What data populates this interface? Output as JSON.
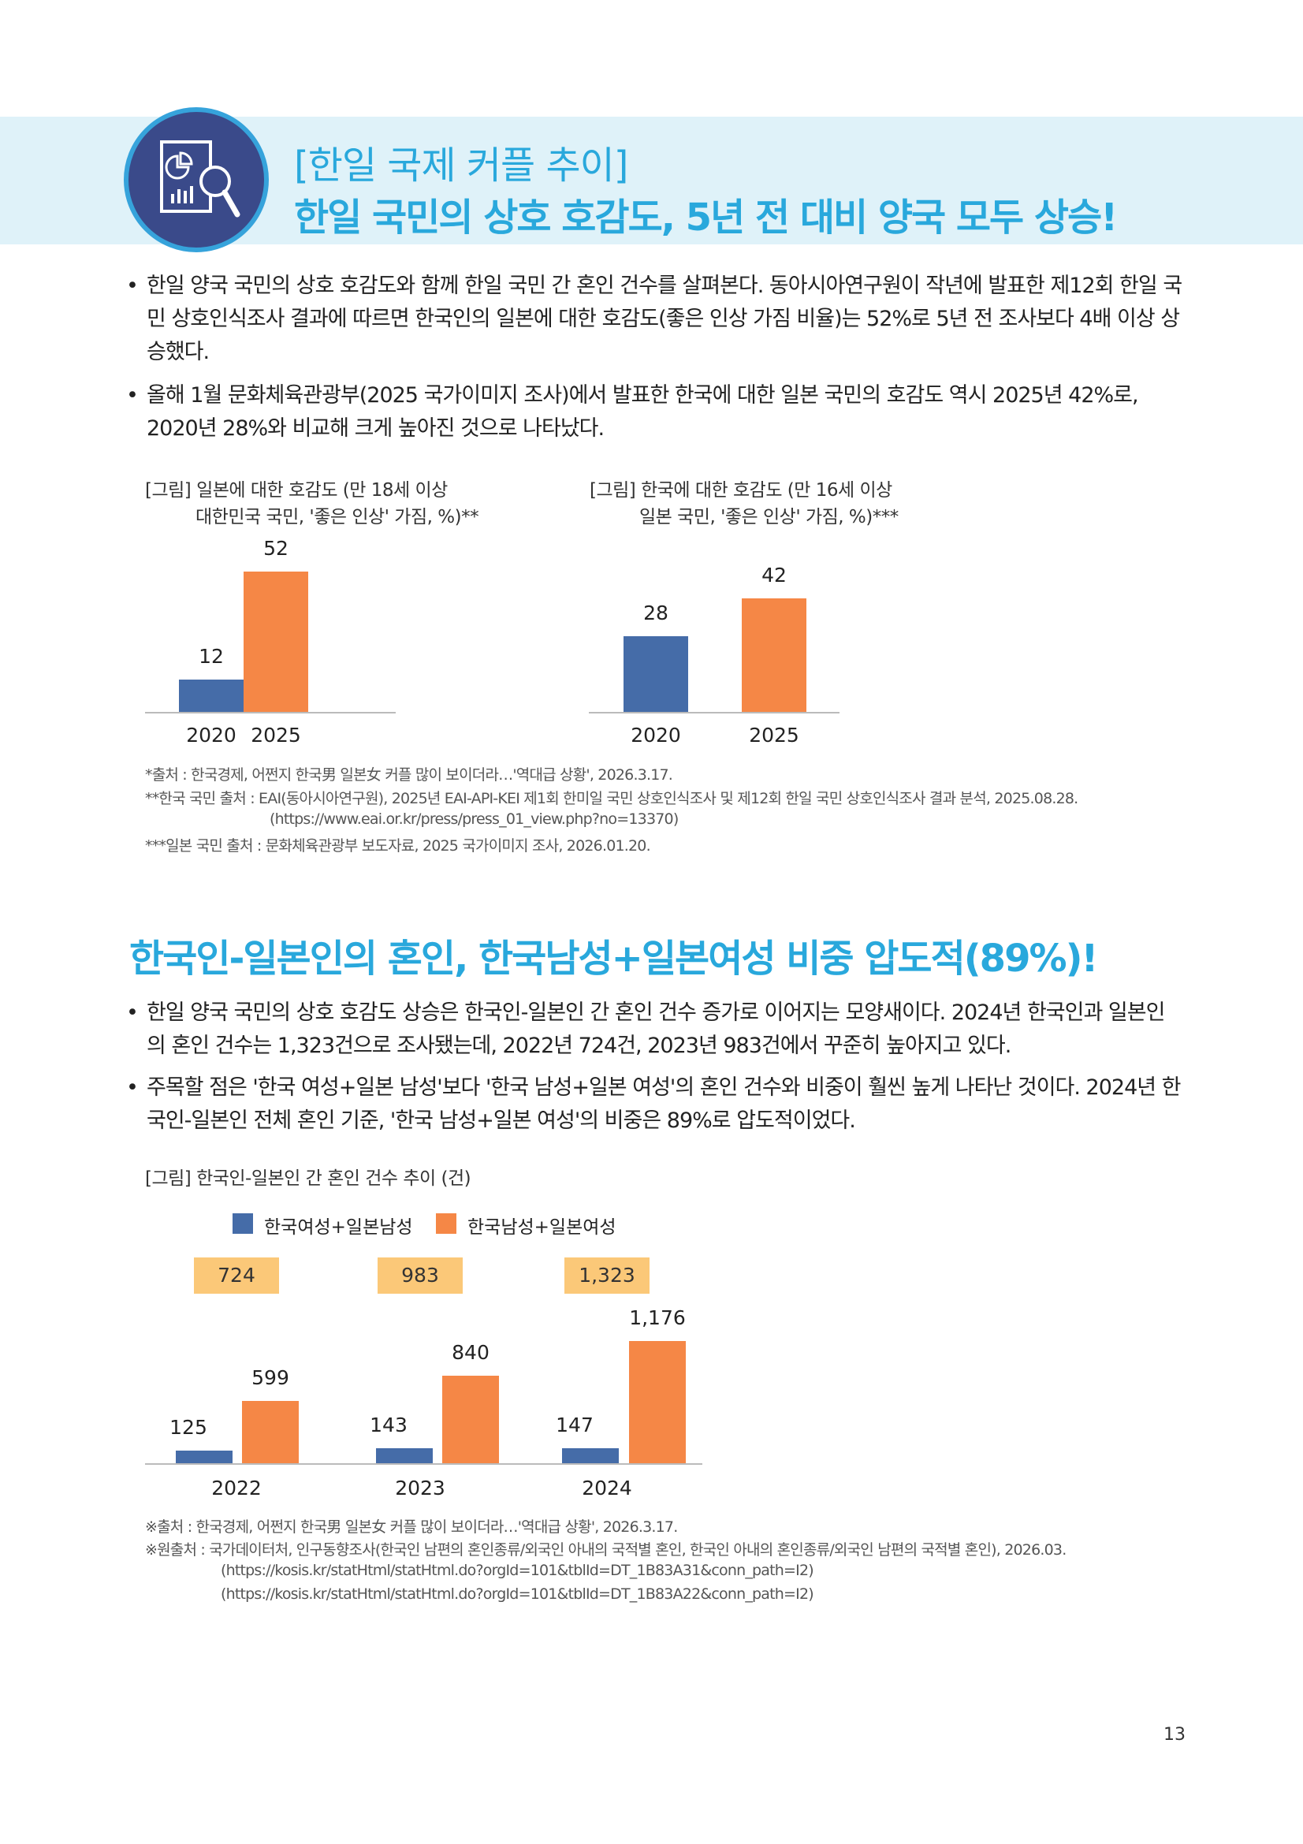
{
  "header": {
    "icon": "report-magnifier-icon",
    "title_line1": "[한일 국제 커플 추이]",
    "title_line2": "한일 국민의 상호 호감도, 5년 전 대비 양국 모두 상승!"
  },
  "section1": {
    "bullets": [
      "한일 양국 국민의 상호 호감도와 함께 한일 국민 간 혼인 건수를 살펴본다. 동아시아연구원이 작년에 발표한 제12회 한일 국민 상호인식조사 결과에 따르면 한국인의 일본에 대한 호감도(좋은 인상 가짐 비율)는 52%로 5년 전 조사보다 4배 이상 상승했다.",
      "올해 1월 문화체육관광부(2025 국가이미지 조사)에서 발표한 한국에 대한 일본 국민의 호감도 역시 2025년 42%로, 2020년 28%와 비교해 크게 높아진 것으로 나타났다."
    ],
    "footnotes": [
      "*출처 : 한국경제, 어쩐지 한국男 일본女 커플 많이 보이더라…'역대급 상황', 2026.3.17.",
      "**한국 국민 출처 : EAI(동아시아연구원), 2025년 EAI-API-KEI 제1회 한미일 국민 상호인식조사 및 제12회 한일 국민 상호인식조사 결과 분석, 2025.08.28.",
      "(https://www.eai.or.kr/press/press_01_view.php?no=13370)",
      "***일본 국민 출처 : 문화체육관광부 보도자료, 2025 국가이미지 조사, 2026.01.20."
    ]
  },
  "section2": {
    "title": "한국인-일본인의 혼인, 한국남성+일본여성 비중 압도적(89%)!",
    "bullets": [
      "한일 양국 국민의 상호 호감도 상승은 한국인-일본인 간 혼인 건수 증가로 이어지는 모양새이다. 2024년 한국인과 일본인의 혼인 건수는 1,323건으로 조사됐는데, 2022년 724건, 2023년 983건에서 꾸준히 높아지고 있다.",
      "주목할 점은 '한국 여성+일본 남성'보다 '한국 남성+일본 여성'의 혼인 건수와 비중이 훨씬 높게 나타난 것이다. 2024년 한국인-일본인 전체 혼인 기준, '한국 남성+일본 여성'의 비중은 89%로 압도적이었다."
    ],
    "footnotes": [
      "※출처 : 한국경제, 어쩐지 한국男 일본女 커플 많이 보이더라…'역대급 상황', 2026.3.17.",
      "※원출처 : 국가데이터처, 인구동향조사(한국인 남편의 혼인종류/외국인 아내의 국적별 혼인, 한국인 아내의 혼인종류/외국인 남편의 국적별 혼인), 2026.03.",
      "(https://kosis.kr/statHtml/statHtml.do?orgId=101&tblId=DT_1B83A31&conn_path=I2)",
      "(https://kosis.kr/statHtml/statHtml.do?orgId=101&tblId=DT_1B83A22&conn_path=I2)"
    ]
  },
  "page_number": "13",
  "colors": {
    "accent": "#29a8dc",
    "blue": "#456ca8",
    "orange": "#f58746",
    "total_box": "#fbc878",
    "band": "#dff2f9"
  },
  "chart_data": [
    {
      "type": "bar",
      "title": "[그림] 일본에 대한 호감도 (만 18세 이상",
      "subtitle": "대한민국 국민, '좋은 인상' 가짐, %)**",
      "categories": [
        "2020",
        "2025"
      ],
      "values": [
        12,
        52
      ],
      "value_labels": [
        "12",
        "52"
      ],
      "bar_colors": [
        "#456ca8",
        "#f58746"
      ],
      "ylim": [
        0,
        60
      ],
      "grid": false
    },
    {
      "type": "bar",
      "title": "[그림] 한국에 대한 호감도 (만 16세 이상",
      "subtitle": "일본 국민, '좋은 인상' 가짐, %)***",
      "categories": [
        "2020",
        "2025"
      ],
      "values": [
        28,
        42
      ],
      "value_labels": [
        "28",
        "42"
      ],
      "bar_colors": [
        "#456ca8",
        "#f58746"
      ],
      "ylim": [
        0,
        60
      ],
      "grid": false
    },
    {
      "type": "bar",
      "title": "[그림] 한국인-일본인 간 혼인 건수 추이 (건)",
      "categories": [
        "2022",
        "2023",
        "2024"
      ],
      "series": [
        {
          "name": "한국여성+일본남성",
          "color": "#456ca8",
          "values": [
            125,
            143,
            147
          ],
          "labels": [
            "125",
            "143",
            "147"
          ]
        },
        {
          "name": "한국남성+일본여성",
          "color": "#f58746",
          "values": [
            599,
            840,
            1176
          ],
          "labels": [
            "599",
            "840",
            "1,176"
          ]
        }
      ],
      "totals": [
        "724",
        "983",
        "1,323"
      ],
      "legend": "top",
      "ylim": [
        0,
        1300
      ],
      "grid": false
    }
  ]
}
